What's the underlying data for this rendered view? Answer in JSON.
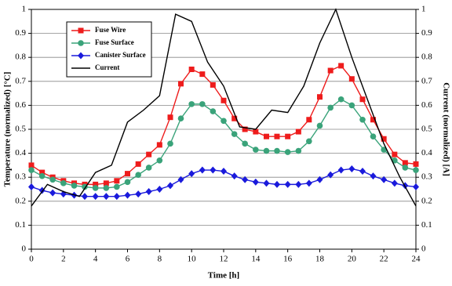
{
  "chart_data": {
    "type": "line",
    "xlabel": "Time [h]",
    "ylabel": "Temperature (normalized) [°C]",
    "y2label": "Current (normalized) [A]",
    "xlim": [
      0,
      24
    ],
    "xticks": [
      0,
      2,
      4,
      6,
      8,
      10,
      12,
      14,
      16,
      18,
      20,
      22,
      24
    ],
    "ylim": [
      0,
      1
    ],
    "yticks": [
      0,
      0.1,
      0.2,
      0.3,
      0.4,
      0.5,
      0.6,
      0.7,
      0.8,
      0.9,
      1
    ],
    "y2lim": [
      0,
      1
    ],
    "y2ticks": [
      0,
      0.1,
      0.2,
      0.3,
      0.4,
      0.5,
      0.6,
      0.7,
      0.8,
      0.9,
      1
    ],
    "grid": true,
    "legend": "upper left",
    "series": [
      {
        "name": "Fuse Wire",
        "color": "#ee1c1c",
        "marker": "square",
        "x": [
          0,
          0.67,
          1.33,
          2,
          2.67,
          3.33,
          4,
          4.67,
          5.33,
          6,
          6.67,
          7.33,
          8,
          8.67,
          9.33,
          10,
          10.67,
          11.33,
          12,
          12.67,
          13.33,
          14,
          14.67,
          15.33,
          16,
          16.67,
          17.33,
          18,
          18.67,
          19.33,
          20,
          20.67,
          21.33,
          22,
          22.67,
          23.33,
          24
        ],
        "values": [
          0.35,
          0.32,
          0.3,
          0.285,
          0.275,
          0.27,
          0.27,
          0.275,
          0.285,
          0.315,
          0.355,
          0.395,
          0.435,
          0.55,
          0.69,
          0.75,
          0.73,
          0.685,
          0.62,
          0.545,
          0.5,
          0.49,
          0.47,
          0.47,
          0.47,
          0.49,
          0.54,
          0.635,
          0.745,
          0.765,
          0.71,
          0.625,
          0.54,
          0.46,
          0.395,
          0.36,
          0.355
        ]
      },
      {
        "name": "Fuse Surface",
        "color": "#3aa37a",
        "marker": "circle",
        "x": [
          0,
          0.67,
          1.33,
          2,
          2.67,
          3.33,
          4,
          4.67,
          5.33,
          6,
          6.67,
          7.33,
          8,
          8.67,
          9.33,
          10,
          10.67,
          11.33,
          12,
          12.67,
          13.33,
          14,
          14.67,
          15.33,
          16,
          16.67,
          17.33,
          18,
          18.67,
          19.33,
          20,
          20.67,
          21.33,
          22,
          22.67,
          23.33,
          24
        ],
        "values": [
          0.33,
          0.305,
          0.29,
          0.275,
          0.265,
          0.26,
          0.255,
          0.255,
          0.26,
          0.28,
          0.31,
          0.34,
          0.37,
          0.44,
          0.545,
          0.605,
          0.605,
          0.575,
          0.535,
          0.48,
          0.44,
          0.415,
          0.41,
          0.41,
          0.405,
          0.41,
          0.45,
          0.515,
          0.59,
          0.625,
          0.6,
          0.54,
          0.47,
          0.415,
          0.37,
          0.34,
          0.33
        ]
      },
      {
        "name": "Canister Surface",
        "color": "#1a1adc",
        "marker": "diamond",
        "x": [
          0,
          0.67,
          1.33,
          2,
          2.67,
          3.33,
          4,
          4.67,
          5.33,
          6,
          6.67,
          7.33,
          8,
          8.67,
          9.33,
          10,
          10.67,
          11.33,
          12,
          12.67,
          13.33,
          14,
          14.67,
          15.33,
          16,
          16.67,
          17.33,
          18,
          18.67,
          19.33,
          20,
          20.67,
          21.33,
          22,
          22.67,
          23.33,
          24
        ],
        "values": [
          0.26,
          0.245,
          0.235,
          0.23,
          0.225,
          0.22,
          0.22,
          0.22,
          0.22,
          0.225,
          0.23,
          0.24,
          0.25,
          0.265,
          0.29,
          0.315,
          0.33,
          0.33,
          0.325,
          0.305,
          0.29,
          0.28,
          0.275,
          0.27,
          0.27,
          0.27,
          0.275,
          0.29,
          0.31,
          0.33,
          0.335,
          0.325,
          0.305,
          0.29,
          0.275,
          0.265,
          0.26
        ]
      },
      {
        "name": "Current",
        "color": "#000000",
        "marker": "none",
        "axis": "y2",
        "x": [
          0,
          1,
          2,
          3,
          4,
          5,
          6,
          7,
          8,
          9,
          10,
          11,
          12,
          13,
          14,
          15,
          16,
          17,
          18,
          19,
          20,
          21,
          22,
          23,
          24
        ],
        "values": [
          0.18,
          0.27,
          0.24,
          0.22,
          0.32,
          0.35,
          0.53,
          0.58,
          0.64,
          0.98,
          0.95,
          0.78,
          0.68,
          0.51,
          0.5,
          0.58,
          0.57,
          0.68,
          0.86,
          1.0,
          0.8,
          0.62,
          0.44,
          0.3,
          0.18
        ]
      }
    ]
  }
}
